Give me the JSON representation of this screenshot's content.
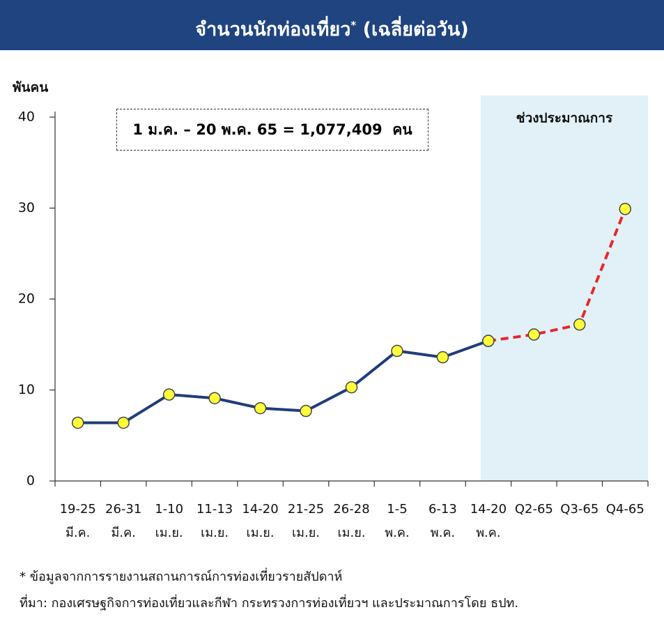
{
  "chart_data": {
    "type": "line",
    "title": "จำนวนนักท่องเที่ยว",
    "title_note_mark": "*",
    "title_rest": "(เฉลี่ยต่อวัน)",
    "y_label": "พันคน",
    "annotation": "1 ม.ค. – 20 พ.ค. 65 = 1,077,409  คน",
    "forecast_label": "ช่วงประมาณการ",
    "categories": [
      "19-25 มี.ค.",
      "26-31 มี.ค.",
      "1-10 เม.ย.",
      "11-13 เม.ย.",
      "14-20 เม.ย.",
      "21-25 เม.ย.",
      "26-28 เม.ย.",
      "1-5 พ.ค.",
      "6-13 พ.ค.",
      "14-20 พ.ค.",
      "Q2-65",
      "Q3-65",
      "Q4-65"
    ],
    "series": [
      {
        "color": "#1f3d7a",
        "dashed": false,
        "values": [
          6.4,
          6.4,
          9.5,
          9.1,
          8.0,
          7.7,
          10.3,
          14.3,
          13.6,
          15.4,
          null,
          null,
          null
        ]
      },
      {
        "color": "#e8262b",
        "dashed": true,
        "values": [
          null,
          null,
          null,
          null,
          null,
          null,
          null,
          null,
          null,
          15.4,
          16.1,
          17.2,
          29.9
        ]
      }
    ],
    "marker_color": "#ffff3a",
    "ylim": [
      0,
      40
    ],
    "yticks": [
      0,
      10,
      20,
      30,
      40
    ],
    "footnotes": [
      "* ข้อมูลจากการรายงานสถานการณ์การท่องเที่ยวรายสัปดาห์",
      "ที่มา: กองเศรษฐกิจการท่องเที่ยวและกีฬา กระทรวงการท่องเที่ยวฯ และประมาณการโดย ธปท."
    ]
  }
}
